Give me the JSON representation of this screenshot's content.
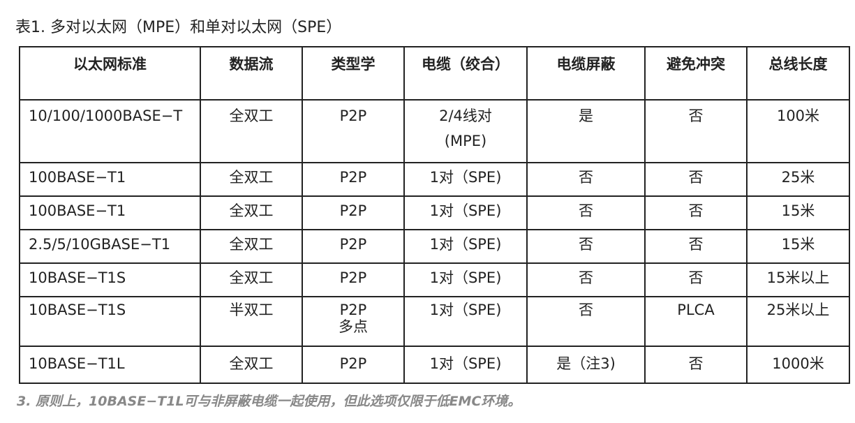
{
  "title": "表1. 多对以太网（MPE）和单对以太网（SPE）",
  "table": {
    "headers": [
      "以太网标准",
      "数据流",
      "类型学",
      "电缆（绞合）",
      "电缆屏蔽",
      "避免冲突",
      "总线长度"
    ],
    "rows": [
      [
        "10/100/1000BASE−T",
        "全双工",
        "P2P",
        "2/4线对\n(MPE)",
        "是",
        "否",
        "100米"
      ],
      [
        "100BASE−T1",
        "全双工",
        "P2P",
        "1对（SPE)",
        "否",
        "否",
        "25米"
      ],
      [
        "100BASE−T1",
        "全双工",
        "P2P",
        "1对（SPE)",
        "否",
        "否",
        "15米"
      ],
      [
        "2.5/5/10GBASE−T1",
        "全双工",
        "P2P",
        "1对（SPE)",
        "否",
        "否",
        "15米"
      ],
      [
        "10BASE−T1S",
        "全双工",
        "P2P",
        "1对（SPE)",
        "否",
        "否",
        "15米以上"
      ],
      [
        "10BASE−T1S",
        "半双工",
        "P2P\n多点",
        "1对（SPE)",
        "否",
        "PLCA",
        "25米以上"
      ],
      [
        "10BASE−T1L",
        "全双工",
        "P2P",
        "1对（SPE)",
        "是（注3)",
        "否",
        "1000米"
      ]
    ]
  },
  "footnote": "3. 原则上，10BASE−T1L可与非屏蔽电缆一起使用，但此选项仅限于低EMC环境。"
}
